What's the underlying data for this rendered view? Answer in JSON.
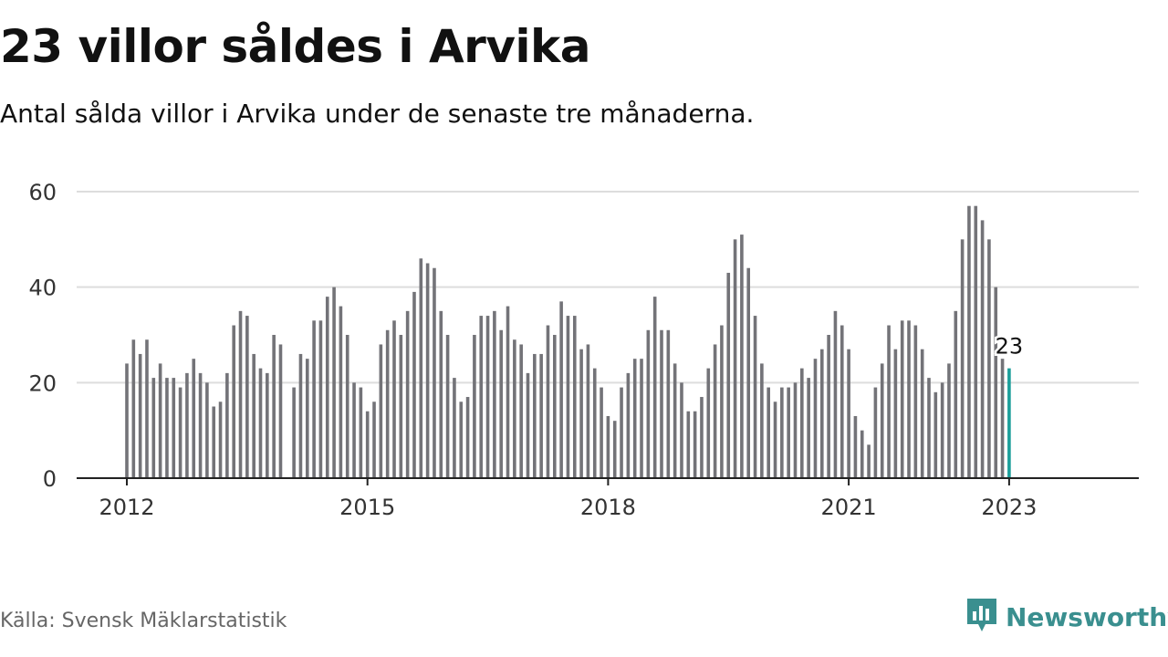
{
  "header": {
    "title": "23 villor såldes i Arvika",
    "subtitle": "Antal sålda villor i Arvika under de senaste tre månaderna."
  },
  "footer": {
    "source": "Källa: Svensk Mäklarstatistik",
    "brand": "Newsworthy"
  },
  "colors": {
    "bar": "#737378",
    "highlight": "#1a9e9a",
    "grid": "#dddddd",
    "axis": "#222222",
    "brand": "#3a8f8f"
  },
  "chart_data": {
    "type": "bar",
    "ylim": [
      0,
      60
    ],
    "yticks": [
      0,
      20,
      40,
      60
    ],
    "x_ticks": [
      {
        "label": "2012",
        "index": 0
      },
      {
        "label": "2015",
        "index": 36
      },
      {
        "label": "2018",
        "index": 72
      },
      {
        "label": "2021",
        "index": 108
      },
      {
        "label": "2023",
        "index": 132
      }
    ],
    "highlight_label": "23",
    "values": [
      24,
      29,
      26,
      29,
      21,
      24,
      21,
      21,
      19,
      22,
      25,
      22,
      20,
      15,
      16,
      22,
      32,
      35,
      34,
      26,
      23,
      22,
      30,
      28,
      null,
      19,
      26,
      25,
      33,
      33,
      38,
      40,
      36,
      30,
      20,
      19,
      14,
      16,
      28,
      31,
      33,
      30,
      35,
      39,
      46,
      45,
      44,
      35,
      30,
      21,
      16,
      17,
      30,
      34,
      34,
      35,
      31,
      36,
      29,
      28,
      22,
      26,
      26,
      32,
      30,
      37,
      34,
      34,
      27,
      28,
      23,
      19,
      13,
      12,
      19,
      22,
      25,
      25,
      31,
      38,
      31,
      31,
      24,
      20,
      14,
      14,
      17,
      23,
      28,
      32,
      43,
      50,
      51,
      44,
      34,
      24,
      19,
      16,
      19,
      19,
      20,
      23,
      21,
      25,
      27,
      30,
      35,
      32,
      27,
      13,
      10,
      7,
      19,
      24,
      32,
      27,
      33,
      33,
      32,
      27,
      21,
      18,
      20,
      24,
      35,
      50,
      57,
      57,
      54,
      50,
      40,
      25,
      23
    ]
  }
}
